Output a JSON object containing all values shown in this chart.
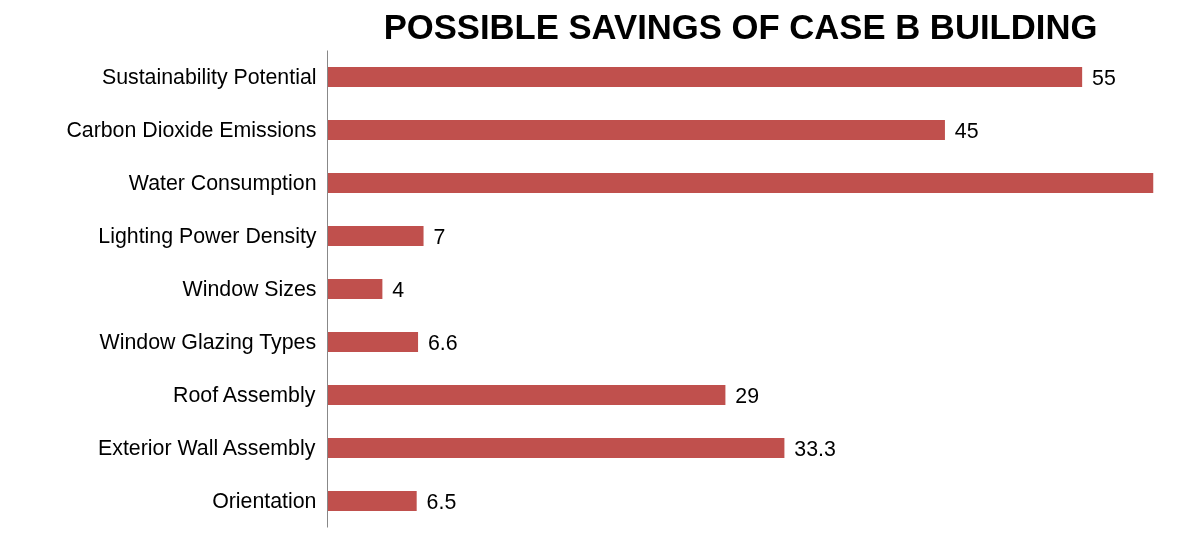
{
  "chart_data": {
    "type": "bar",
    "orientation": "horizontal",
    "title": "POSSIBLE SAVINGS OF CASE B BUILDING",
    "categories": [
      "Sustainability Potential",
      "Carbon Dioxide Emissions",
      "Water Consumption",
      "Lighting Power Density",
      "Window Sizes",
      "Window Glazing Types",
      "Roof Assembly",
      "Exterior Wall Assembly",
      "Orientation"
    ],
    "values": [
      55,
      45,
      60.2,
      7,
      4,
      6.6,
      29,
      33.3,
      6.5
    ],
    "value_labels": [
      "55",
      "45",
      null,
      "7",
      "4",
      "6.6",
      "29",
      "33.3",
      "6.5"
    ],
    "color": "#c0504d",
    "grid": false
  }
}
